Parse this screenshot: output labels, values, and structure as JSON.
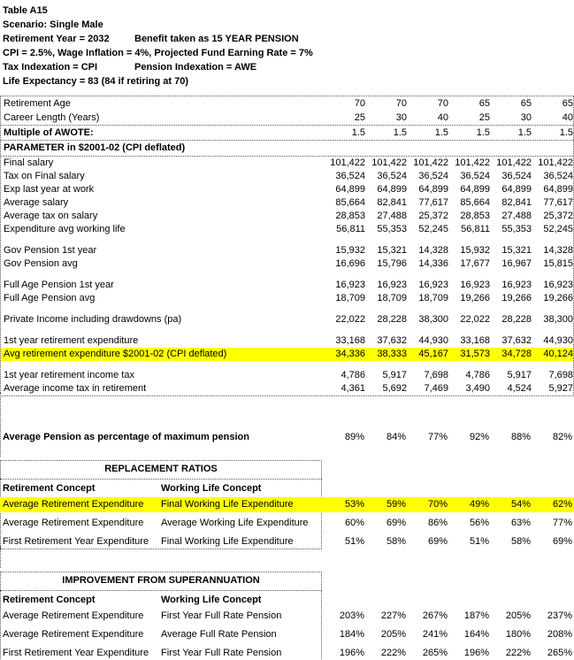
{
  "colors": {
    "highlight": "#ffff00",
    "border_dotted": "#555555",
    "text": "#000000",
    "background": "#ffffff"
  },
  "header": {
    "title": "Table A15",
    "scenario": "Scenario: Single Male",
    "retirement_year": "Retirement Year = 2032",
    "benefit": "Benefit taken as 15 YEAR PENSION",
    "cpi_line": "CPI = 2.5%, Wage Inflation = 4%, Projected Fund Earning Rate = 7%",
    "tax_indexation": "Tax Indexation = CPI",
    "pension_indexation": "Pension Indexation = AWE",
    "life_expectancy": "Life Expectancy = 83 (84 if retiring at 70)"
  },
  "main_table": {
    "pre_rows": [
      {
        "label": "Retirement Age",
        "values": [
          "70",
          "70",
          "70",
          "65",
          "65",
          "65"
        ]
      },
      {
        "label": "Career Length (Years)",
        "values": [
          "25",
          "30",
          "40",
          "25",
          "30",
          "40"
        ]
      }
    ],
    "awote_row": {
      "label": "Multiple of AWOTE:",
      "bold_label": true,
      "values": [
        "1.5",
        "1.5",
        "1.5",
        "1.5",
        "1.5",
        "1.5"
      ]
    },
    "section_header": "PARAMETER in $2001-02 (CPI deflated)",
    "groups": [
      [
        {
          "label": "Final salary",
          "values": [
            "101,422",
            "101,422",
            "101,422",
            "101,422",
            "101,422",
            "101,422"
          ]
        },
        {
          "label": "Tax on Final salary",
          "values": [
            "36,524",
            "36,524",
            "36,524",
            "36,524",
            "36,524",
            "36,524"
          ]
        },
        {
          "label": "Exp last year at work",
          "values": [
            "64,899",
            "64,899",
            "64,899",
            "64,899",
            "64,899",
            "64,899"
          ]
        },
        {
          "label": "Average salary",
          "values": [
            "85,664",
            "82,841",
            "77,617",
            "85,664",
            "82,841",
            "77,617"
          ]
        },
        {
          "label": "Average tax on salary",
          "values": [
            "28,853",
            "27,488",
            "25,372",
            "28,853",
            "27,488",
            "25,372"
          ]
        },
        {
          "label": "Expenditure avg working life",
          "values": [
            "56,811",
            "55,353",
            "52,245",
            "56,811",
            "55,353",
            "52,245"
          ]
        }
      ],
      [
        {
          "label": "Gov Pension 1st year",
          "values": [
            "15,932",
            "15,321",
            "14,328",
            "15,932",
            "15,321",
            "14,328"
          ]
        },
        {
          "label": "Gov Pension avg",
          "values": [
            "16,696",
            "15,796",
            "14,336",
            "17,677",
            "16,967",
            "15,815"
          ]
        }
      ],
      [
        {
          "label": "Full Age Pension 1st year",
          "values": [
            "16,923",
            "16,923",
            "16,923",
            "16,923",
            "16,923",
            "16,923"
          ]
        },
        {
          "label": "Full Age Pension avg",
          "values": [
            "18,709",
            "18,709",
            "18,709",
            "19,266",
            "19,266",
            "19,266"
          ]
        }
      ],
      [
        {
          "label": "Private Income including drawdowns (pa)",
          "values": [
            "22,022",
            "28,228",
            "38,300",
            "22,022",
            "28,228",
            "38,300"
          ]
        }
      ],
      [
        {
          "label": "1st year retirement expenditure",
          "values": [
            "33,168",
            "37,632",
            "44,930",
            "33,168",
            "37,632",
            "44,930"
          ]
        },
        {
          "label": "Avg retirement expenditure $2001-02 (CPI deflated)",
          "highlight": true,
          "values": [
            "34,336",
            "38,333",
            "45,167",
            "31,573",
            "34,728",
            "40,124"
          ]
        }
      ],
      [
        {
          "label": "1st year retirement income tax",
          "values": [
            "4,786",
            "5,917",
            "7,698",
            "4,786",
            "5,917",
            "7,698"
          ]
        },
        {
          "label": "Average income tax in retirement",
          "values": [
            "4,361",
            "5,692",
            "7,469",
            "3,490",
            "4,524",
            "5,927"
          ]
        }
      ]
    ]
  },
  "average_pension": {
    "label": "Average Pension as percentage of  maximum pension",
    "values": [
      "89%",
      "84%",
      "77%",
      "92%",
      "88%",
      "82%"
    ]
  },
  "replacement_ratios": {
    "title": "REPLACEMENT RATIOS",
    "col1_header": "Retirement Concept",
    "col2_header": "Working Life Concept",
    "rows": [
      {
        "c1": "Average Retirement Expenditure",
        "c2": "Final Working Life Expenditure",
        "highlight": true,
        "values": [
          "53%",
          "59%",
          "70%",
          "49%",
          "54%",
          "62%"
        ]
      },
      {
        "c1": "Average Retirement Expenditure",
        "c2": "Average Working Life Expenditure",
        "values": [
          "60%",
          "69%",
          "86%",
          "56%",
          "63%",
          "77%"
        ]
      },
      {
        "c1": "First Retirement Year Expenditure",
        "c2": "Final Working Life Expenditure",
        "values": [
          "51%",
          "58%",
          "69%",
          "51%",
          "58%",
          "69%"
        ]
      }
    ]
  },
  "improvement": {
    "title": "IMPROVEMENT FROM SUPERANNUATION",
    "col1_header": "Retirement Concept",
    "col2_header": "Working Life Concept",
    "rows": [
      {
        "c1": "Average Retirement Expenditure",
        "c2": "First Year Full Rate Pension",
        "values": [
          "203%",
          "227%",
          "267%",
          "187%",
          "205%",
          "237%"
        ]
      },
      {
        "c1": "Average Retirement Expenditure",
        "c2": "Average Full Rate Pension",
        "values": [
          "184%",
          "205%",
          "241%",
          "164%",
          "180%",
          "208%"
        ]
      },
      {
        "c1": "First Retirement Year Expenditure",
        "c2": "First Year Full Rate Pension",
        "values": [
          "196%",
          "222%",
          "265%",
          "196%",
          "222%",
          "265%"
        ]
      }
    ]
  }
}
